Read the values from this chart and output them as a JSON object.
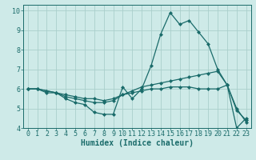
{
  "title": "",
  "xlabel": "Humidex (Indice chaleur)",
  "ylabel": "",
  "xlim": [
    -0.5,
    23.5
  ],
  "ylim": [
    4,
    10.3
  ],
  "yticks": [
    4,
    5,
    6,
    7,
    8,
    9,
    10
  ],
  "xticks": [
    0,
    1,
    2,
    3,
    4,
    5,
    6,
    7,
    8,
    9,
    10,
    11,
    12,
    13,
    14,
    15,
    16,
    17,
    18,
    19,
    20,
    21,
    22,
    23
  ],
  "bg_color": "#ceeae8",
  "grid_color": "#aacfcc",
  "line_color": "#1a6b6a",
  "series": [
    {
      "x": [
        0,
        1,
        2,
        3,
        4,
        5,
        6,
        7,
        8,
        9,
        10,
        11,
        12,
        13,
        14,
        15,
        16,
        17,
        18,
        19,
        20,
        21,
        22,
        23
      ],
      "y": [
        6.0,
        6.0,
        5.8,
        5.8,
        5.5,
        5.3,
        5.2,
        4.8,
        4.7,
        4.7,
        6.1,
        5.5,
        6.0,
        7.2,
        8.8,
        9.9,
        9.3,
        9.5,
        8.9,
        8.3,
        7.0,
        6.2,
        4.9,
        4.4
      ]
    },
    {
      "x": [
        0,
        1,
        2,
        3,
        4,
        5,
        6,
        7,
        8,
        9,
        10,
        11,
        12,
        13,
        14,
        15,
        16,
        17,
        18,
        19,
        20,
        21,
        22,
        23
      ],
      "y": [
        6.0,
        6.0,
        5.9,
        5.8,
        5.6,
        5.5,
        5.4,
        5.3,
        5.3,
        5.4,
        5.7,
        5.9,
        6.1,
        6.2,
        6.3,
        6.4,
        6.5,
        6.6,
        6.7,
        6.8,
        6.9,
        6.2,
        5.0,
        4.3
      ]
    },
    {
      "x": [
        0,
        1,
        2,
        3,
        4,
        5,
        6,
        7,
        8,
        9,
        10,
        11,
        12,
        13,
        14,
        15,
        16,
        17,
        18,
        19,
        20,
        21,
        22,
        23
      ],
      "y": [
        6.0,
        6.0,
        5.9,
        5.8,
        5.7,
        5.6,
        5.5,
        5.5,
        5.4,
        5.5,
        5.7,
        5.8,
        5.9,
        6.0,
        6.0,
        6.1,
        6.1,
        6.1,
        6.0,
        6.0,
        6.0,
        6.2,
        4.0,
        4.5
      ]
    }
  ],
  "figsize": [
    3.2,
    2.0
  ],
  "dpi": 100,
  "tick_fontsize": 6,
  "xlabel_fontsize": 7,
  "marker": "D",
  "markersize": 2.0,
  "linewidth": 0.9
}
